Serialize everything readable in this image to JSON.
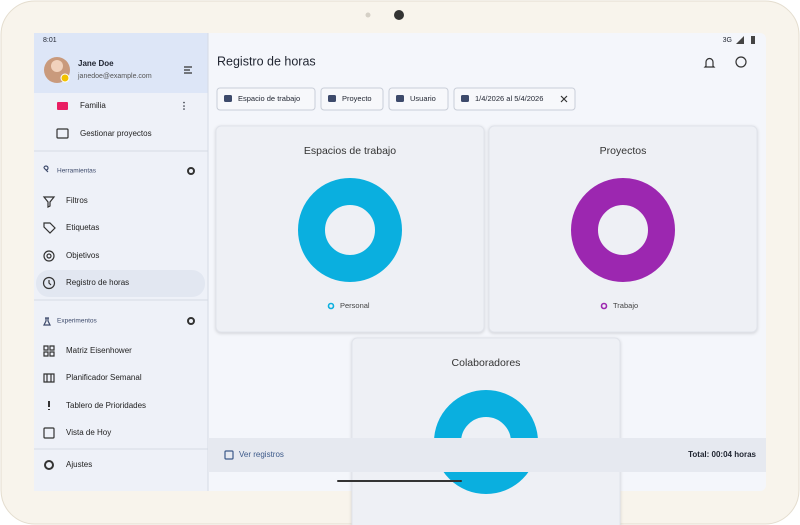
{
  "status_bar": {
    "time": "8:01",
    "network": "3G"
  },
  "user": {
    "name": "Jane Doe",
    "email": "janedoe@example.com"
  },
  "sidebar": {
    "projects": [
      "Familia",
      "Gestionar proyectos"
    ],
    "tools": {
      "title": "Herramientas",
      "items": [
        "Filtros",
        "Etiquetas",
        "Objetivos",
        "Registro de horas"
      ]
    },
    "experiments": {
      "title": "Experimentos",
      "items": [
        "Matriz Eisenhower",
        "Planificador Semanal",
        "Tablero de Prioridades",
        "Vista de Hoy"
      ]
    },
    "settings": "Ajustes"
  },
  "header": {
    "title": "Registro de horas"
  },
  "filters": [
    "Espacio de trabajo",
    "Proyecto",
    "Usuario",
    "1/4/2026 al 5/4/2026"
  ],
  "cards": [
    {
      "title": "Espacios de trabajo",
      "legend": "Personal",
      "color": "#0aafdf"
    },
    {
      "title": "Proyectos",
      "legend": "Trabajo",
      "color": "#9c27b0"
    },
    {
      "title": "Colaboradores",
      "color": "#0aafdf"
    }
  ],
  "footer": {
    "link": "Ver registros",
    "total": "Total: 00:04 horas"
  }
}
